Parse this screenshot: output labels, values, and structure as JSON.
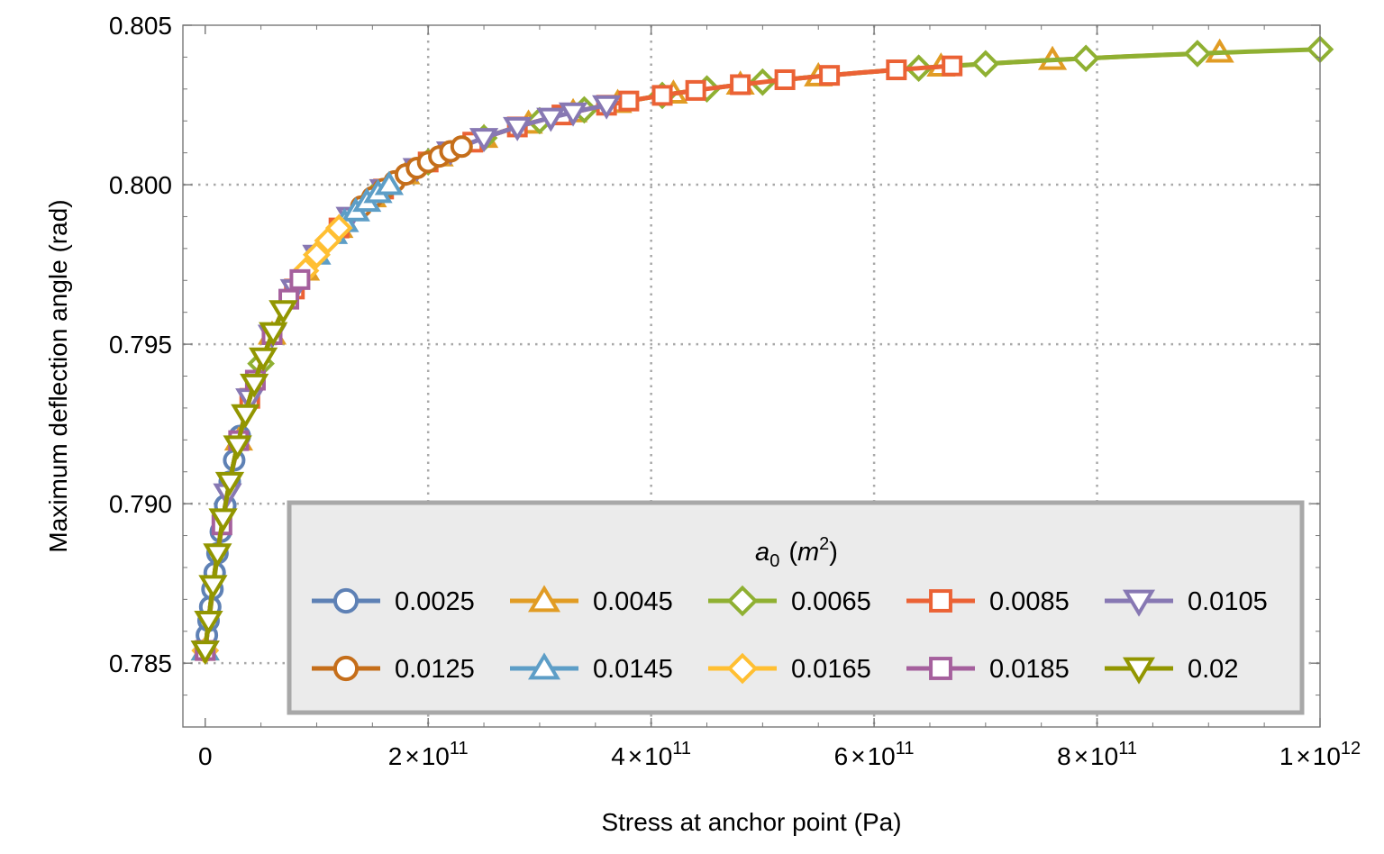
{
  "chart_data": {
    "type": "line",
    "title": "",
    "xlabel": "Stress at anchor point (Pa)",
    "ylabel": "Maximum deflection angle (rad)",
    "xlim": [
      -20000000000.0,
      1000000000000.0
    ],
    "ylim": [
      0.783,
      0.805
    ],
    "grid": "dotted, at major ticks",
    "x_ticks": [
      {
        "value": 0,
        "label": "0"
      },
      {
        "value": 200000000000.0,
        "mant": "2",
        "exp": "11"
      },
      {
        "value": 400000000000.0,
        "mant": "4",
        "exp": "11"
      },
      {
        "value": 600000000000.0,
        "mant": "6",
        "exp": "11"
      },
      {
        "value": 800000000000.0,
        "mant": "8",
        "exp": "11"
      },
      {
        "value": 1000000000000.0,
        "mant": "1",
        "exp": "12"
      }
    ],
    "times_symbol": "×",
    "ten": "10",
    "y_ticks": [
      {
        "value": 0.785,
        "label": "0.785"
      },
      {
        "value": 0.79,
        "label": "0.790"
      },
      {
        "value": 0.795,
        "label": "0.795"
      },
      {
        "value": 0.8,
        "label": "0.800"
      },
      {
        "value": 0.805,
        "label": "0.805"
      }
    ],
    "curve": {
      "theta0": 0.785398,
      "A": 0.02,
      "s0": 61200000000.0
    },
    "legend": {
      "title_var": "a",
      "title_sub": "0",
      "title_unit_open": "(",
      "title_unit": "m",
      "title_unit_exp": "2",
      "title_unit_close": ")",
      "placement": "bottom-right"
    },
    "series": [
      {
        "name": "0.0025",
        "color": "#5E81B5",
        "marker": "circle",
        "x_max": 31000000000.0,
        "x": [
          0,
          1500000000.0,
          3000000000.0,
          4500000000.0,
          6500000000.0,
          8500000000.0,
          11000000000.0,
          14000000000.0,
          18000000000.0,
          22000000000.0,
          26000000000.0,
          31000000000.0
        ]
      },
      {
        "name": "0.0045",
        "color": "#E19C24",
        "marker": "triangle-up",
        "x_max": 910000000000.0,
        "x": [
          0,
          30000000000.0,
          60000000000.0,
          90000000000.0,
          120000000000.0,
          150000000000.0,
          180000000000.0,
          210000000000.0,
          250000000000.0,
          290000000000.0,
          330000000000.0,
          370000000000.0,
          420000000000.0,
          480000000000.0,
          550000000000.0,
          660000000000.0,
          760000000000.0,
          910000000000.0
        ]
      },
      {
        "name": "0.0065",
        "color": "#8FB032",
        "marker": "diamond",
        "x_max": 1000000000000.0,
        "x": [
          0,
          50000000000.0,
          100000000000.0,
          150000000000.0,
          200000000000.0,
          250000000000.0,
          300000000000.0,
          340000000000.0,
          410000000000.0,
          450000000000.0,
          500000000000.0,
          640000000000.0,
          700000000000.0,
          790000000000.0,
          890000000000.0,
          1000000000000.0
        ]
      },
      {
        "name": "0.0085",
        "color": "#EB6235",
        "marker": "square",
        "x_max": 670000000000.0,
        "x": [
          0,
          40000000000.0,
          80000000000.0,
          120000000000.0,
          160000000000.0,
          200000000000.0,
          240000000000.0,
          280000000000.0,
          320000000000.0,
          360000000000.0,
          380000000000.0,
          410000000000.0,
          440000000000.0,
          480000000000.0,
          520000000000.0,
          560000000000.0,
          620000000000.0,
          670000000000.0
        ]
      },
      {
        "name": "0.0105",
        "color": "#8778B3",
        "marker": "triangle-down",
        "x_max": 360000000000.0,
        "x": [
          0,
          20000000000.0,
          40000000000.0,
          60000000000.0,
          80000000000.0,
          100000000000.0,
          130000000000.0,
          160000000000.0,
          190000000000.0,
          220000000000.0,
          250000000000.0,
          280000000000.0,
          310000000000.0,
          330000000000.0,
          360000000000.0
        ]
      },
      {
        "name": "0.0125",
        "color": "#C56E1A",
        "marker": "circle",
        "x_max": 230000000000.0,
        "x": [
          0,
          140000000000.0,
          150000000000.0,
          160000000000.0,
          170000000000.0,
          180000000000.0,
          190000000000.0,
          200000000000.0,
          210000000000.0,
          220000000000.0,
          230000000000.0
        ]
      },
      {
        "name": "0.0145",
        "color": "#5D9EC7",
        "marker": "triangle-up",
        "x_max": 165000000000.0,
        "x": [
          0,
          100000000000.0,
          115000000000.0,
          125000000000.0,
          135000000000.0,
          145000000000.0,
          155000000000.0,
          165000000000.0
        ]
      },
      {
        "name": "0.0165",
        "color": "#FFBF32",
        "marker": "diamond",
        "x_max": 120000000000.0,
        "x": [
          0,
          90000000000.0,
          100000000000.0,
          110000000000.0,
          120000000000.0
        ]
      },
      {
        "name": "0.0185",
        "color": "#A5609D",
        "marker": "square",
        "x_max": 85000000000.0,
        "x": [
          0,
          15000000000.0,
          30000000000.0,
          45000000000.0,
          60000000000.0,
          75000000000.0,
          85000000000.0
        ]
      },
      {
        "name": "0.02",
        "color": "#929600",
        "marker": "triangle-down",
        "x_max": 70000000000.0,
        "x": [
          0,
          3000000000.0,
          7000000000.0,
          11000000000.0,
          16000000000.0,
          22000000000.0,
          29000000000.0,
          36000000000.0,
          44000000000.0,
          52000000000.0,
          61000000000.0,
          70000000000.0
        ]
      }
    ]
  }
}
